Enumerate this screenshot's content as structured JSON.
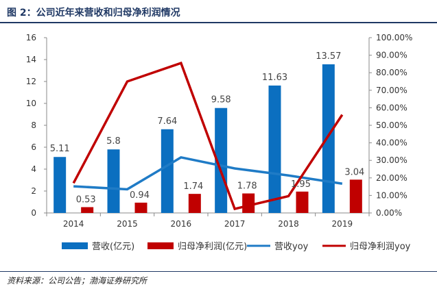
{
  "figure": {
    "title": "图 2：公司近年来营收和归母净利润情况",
    "source": "资料来源：公司公告；渤海证券研究所"
  },
  "colors": {
    "revenue_bar": "#0b6fc0",
    "profit_bar": "#c00000",
    "revenue_yoy_line": "#1f7bc6",
    "profit_yoy_line": "#c00000",
    "header": "#1f3864"
  },
  "chart_data": {
    "type": "bar",
    "categories": [
      "2014",
      "2015",
      "2016",
      "2017",
      "2018",
      "2019"
    ],
    "series": [
      {
        "name": "营收(亿元)",
        "type": "bar",
        "axis": "left",
        "values": [
          5.11,
          5.8,
          7.64,
          9.58,
          11.63,
          13.57
        ]
      },
      {
        "name": "归母净利润(亿元)",
        "type": "bar",
        "axis": "left",
        "values": [
          0.53,
          0.94,
          1.74,
          1.78,
          1.95,
          3.04
        ]
      },
      {
        "name": "营收yoy",
        "type": "line",
        "axis": "right",
        "values": [
          15.2,
          13.5,
          31.7,
          25.4,
          21.4,
          16.7
        ]
      },
      {
        "name": "归母净利润yoy",
        "type": "line",
        "axis": "right",
        "values": [
          17.0,
          75.0,
          85.5,
          2.3,
          9.6,
          56.0
        ]
      }
    ],
    "data_labels": {
      "revenue": [
        "5.11",
        "5.8",
        "7.64",
        "9.58",
        "11.63",
        "13.57"
      ],
      "profit": [
        "0.53",
        "0.94",
        "1.74",
        "1.78",
        "1.95",
        "3.04"
      ]
    },
    "y_left": {
      "min": 0,
      "max": 16,
      "ticks": [
        "0",
        "2",
        "4",
        "6",
        "8",
        "10",
        "12",
        "14",
        "16"
      ]
    },
    "y_right": {
      "min": 0,
      "max": 100,
      "ticks": [
        "0.00%",
        "10.00%",
        "20.00%",
        "30.00%",
        "40.00%",
        "50.00%",
        "60.00%",
        "70.00%",
        "80.00%",
        "90.00%",
        "100.00%"
      ]
    },
    "legend_position": "bottom",
    "grid": false
  }
}
